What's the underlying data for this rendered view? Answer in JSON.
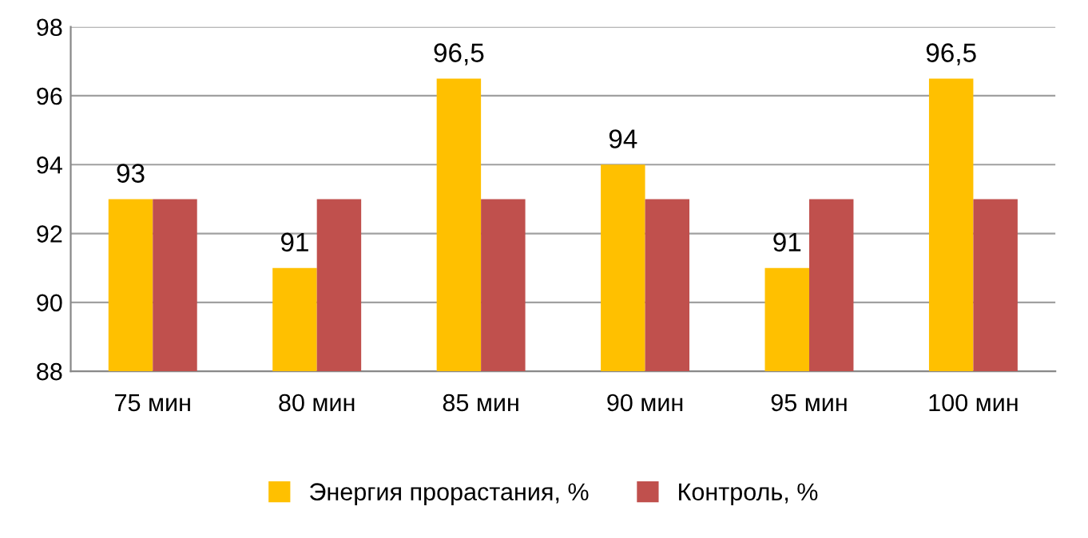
{
  "chart_data": {
    "type": "bar",
    "categories": [
      "75 мин",
      "80 мин",
      "85 мин",
      "90 мин",
      "95 мин",
      "100 мин"
    ],
    "series": [
      {
        "name": "Энергия прорастания, %",
        "color": "#ffc000",
        "values": [
          93,
          91,
          96.5,
          94,
          91,
          96.5
        ],
        "value_labels": [
          "93",
          "91",
          "96,5",
          "94",
          "91",
          "96,5"
        ]
      },
      {
        "name": "Контроль, %",
        "color": "#c0504d",
        "values": [
          93,
          93,
          93,
          93,
          93,
          93
        ]
      }
    ],
    "ylim": [
      88,
      98
    ],
    "yticks": [
      88,
      90,
      92,
      94,
      96,
      98
    ],
    "grid": "y",
    "legend": "bottom"
  }
}
